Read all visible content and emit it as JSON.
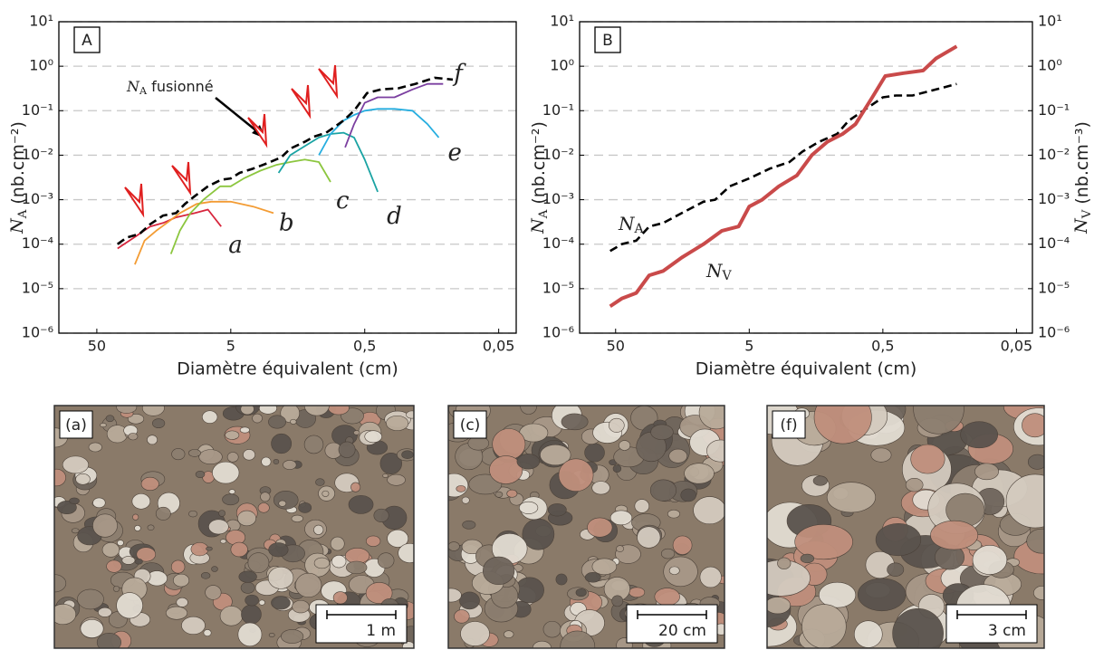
{
  "chart_data": [
    {
      "type": "line",
      "panel": "A",
      "xlabel": "Diamètre équivalent (cm)",
      "ylabel": "NA (nb.cm⁻²)",
      "xscale": "log",
      "yscale": "log",
      "grid": true,
      "xlim": [
        96,
        0.037
      ],
      "xticks": [
        50,
        5,
        {
          "value": 0.5,
          "label": "0,5"
        },
        {
          "value": 0.05,
          "label": "0,05"
        }
      ],
      "ylim": [
        1e-06,
        10
      ],
      "yticks": [
        {
          "value": 1e-06,
          "label": "10⁻⁶"
        },
        {
          "value": 1e-05,
          "label": "10⁻⁵"
        },
        {
          "value": 0.0001,
          "label": "10⁻⁴"
        },
        {
          "value": 0.001,
          "label": "10⁻³"
        },
        {
          "value": 0.01,
          "label": "10⁻²"
        },
        {
          "value": 0.1,
          "label": "10⁻¹"
        },
        {
          "value": 1,
          "label": "10⁰"
        },
        {
          "value": 10,
          "label": "10¹"
        }
      ],
      "annotation": "NA fusionné",
      "series": [
        {
          "name": "a",
          "color": "#d7263d",
          "x": [
            35,
            25.6,
            20,
            16,
            12.8,
            9.3,
            7.4,
            5.9
          ],
          "values": [
            8e-05,
            0.00015,
            0.00025,
            0.0003,
            0.0004,
            0.0005,
            0.0006,
            0.00025
          ]
        },
        {
          "name": "b",
          "color": "#f39c34",
          "x": [
            26,
            22,
            18,
            15,
            12,
            9,
            7,
            5,
            3.4,
            2.4
          ],
          "values": [
            3.5e-05,
            0.00012,
            0.0002,
            0.0003,
            0.0005,
            0.0008,
            0.0009,
            0.0009,
            0.0007,
            0.0005
          ]
        },
        {
          "name": "c",
          "color": "#8cc63f",
          "x": [
            14,
            12,
            10,
            8,
            6,
            5,
            4,
            3,
            2.3,
            1.8,
            1.4,
            1.1,
            0.9
          ],
          "values": [
            6e-05,
            0.0002,
            0.0005,
            0.001,
            0.002,
            0.002,
            0.003,
            0.0045,
            0.006,
            0.007,
            0.008,
            0.007,
            0.0025
          ]
        },
        {
          "name": "d",
          "color": "#1aa3a3",
          "x": [
            2.2,
            1.8,
            1.4,
            1.1,
            0.9,
            0.72,
            0.6,
            0.5,
            0.4
          ],
          "values": [
            0.004,
            0.01,
            0.016,
            0.025,
            0.03,
            0.032,
            0.025,
            0.008,
            0.0015
          ]
        },
        {
          "name": "e",
          "color": "#27aee0",
          "x": [
            1.1,
            0.9,
            0.72,
            0.6,
            0.5,
            0.4,
            0.3,
            0.22,
            0.17,
            0.14
          ],
          "values": [
            0.01,
            0.03,
            0.06,
            0.08,
            0.1,
            0.11,
            0.11,
            0.1,
            0.05,
            0.025
          ]
        },
        {
          "name": "f",
          "color": "#7b3fa0",
          "x": [
            0.7,
            0.6,
            0.5,
            0.4,
            0.3,
            0.22,
            0.17,
            0.13
          ],
          "values": [
            0.015,
            0.05,
            0.15,
            0.2,
            0.2,
            0.3,
            0.4,
            0.4
          ]
        },
        {
          "color": "#000000",
          "dashed": true,
          "x": [
            35,
            30,
            24,
            20,
            16,
            12.8,
            11,
            9.3,
            7.4,
            5.9,
            5,
            4.3,
            3.4,
            2.7,
            2.1,
            1.8,
            1.4,
            1.2,
            0.97,
            0.72,
            0.6,
            0.48,
            0.38,
            0.28,
            0.21,
            0.15,
            0.11
          ],
          "values": [
            0.0001,
            0.00014,
            0.00017,
            0.00028,
            0.00044,
            0.0005,
            0.0008,
            0.0012,
            0.002,
            0.0028,
            0.003,
            0.004,
            0.005,
            0.0065,
            0.009,
            0.014,
            0.02,
            0.026,
            0.032,
            0.06,
            0.1,
            0.25,
            0.3,
            0.32,
            0.4,
            0.55,
            0.5
          ]
        }
      ]
    },
    {
      "type": "line",
      "panel": "B",
      "xlabel": "Diamètre équivalent (cm)",
      "ylabel": "NA (nb.cm⁻²)",
      "y2label": "NV (nb.cm⁻³)",
      "xscale": "log",
      "yscale": "log",
      "grid": true,
      "xlim": [
        93,
        0.038
      ],
      "xticks": [
        50,
        5,
        {
          "value": 0.5,
          "label": "0,5"
        },
        {
          "value": 0.05,
          "label": "0,05"
        }
      ],
      "ylim": [
        1e-06,
        10
      ],
      "yticks": [
        {
          "value": 1e-06,
          "label": "10⁻⁶"
        },
        {
          "value": 1e-05,
          "label": "10⁻⁵"
        },
        {
          "value": 0.0001,
          "label": "10⁻⁴"
        },
        {
          "value": 0.001,
          "label": "10⁻³"
        },
        {
          "value": 0.01,
          "label": "10⁻²"
        },
        {
          "value": 0.1,
          "label": "10⁻¹"
        },
        {
          "value": 1,
          "label": "10⁰"
        },
        {
          "value": 10,
          "label": "10¹"
        }
      ],
      "y2lim": [
        1e-06,
        10
      ],
      "y2ticks": [
        {
          "value": 1e-06,
          "label": "10⁻⁶"
        },
        {
          "value": 1e-05,
          "label": "10⁻⁵"
        },
        {
          "value": 0.0001,
          "label": "10⁻⁴"
        },
        {
          "value": 0.001,
          "label": "10⁻³"
        },
        {
          "value": 0.01,
          "label": "10⁻²"
        },
        {
          "value": 0.1,
          "label": "10⁻¹"
        },
        {
          "value": 1,
          "label": "10⁰"
        },
        {
          "value": 10,
          "label": "10¹"
        }
      ],
      "series": [
        {
          "name": "NA",
          "color": "#000000",
          "dashed": true,
          "x": [
            55,
            45,
            35,
            28,
            22,
            16,
            11,
            9,
            7,
            5,
            3.5,
            2.5,
            2,
            1.5,
            1.1,
            0.9,
            0.7,
            0.5,
            0.4,
            0.3,
            0.2,
            0.14
          ],
          "values": [
            7e-05,
            0.0001,
            0.00012,
            0.00025,
            0.0003,
            0.0005,
            0.0009,
            0.001,
            0.002,
            0.003,
            0.005,
            0.007,
            0.012,
            0.02,
            0.03,
            0.06,
            0.1,
            0.2,
            0.22,
            0.22,
            0.3,
            0.4
          ]
        },
        {
          "name": "NV",
          "color": "#c94a4a",
          "axis": "y2",
          "width": 4,
          "x": [
            55,
            45,
            35,
            28,
            22,
            16,
            11,
            8,
            6,
            5,
            4,
            3,
            2.2,
            1.7,
            1.3,
            1,
            0.8,
            0.6,
            0.48,
            0.35,
            0.25,
            0.2,
            0.14
          ],
          "values": [
            4e-06,
            6e-06,
            8e-06,
            2e-05,
            2.5e-05,
            5e-05,
            0.0001,
            0.0002,
            0.00025,
            0.0007,
            0.001,
            0.002,
            0.0035,
            0.01,
            0.02,
            0.03,
            0.05,
            0.2,
            0.6,
            0.7,
            0.8,
            1.5,
            2.8
          ]
        }
      ]
    }
  ],
  "photos": [
    {
      "label": "(a)",
      "scale": "1 m"
    },
    {
      "label": "(c)",
      "scale": "20 cm"
    },
    {
      "label": "(f)",
      "scale": "3 cm"
    }
  ]
}
